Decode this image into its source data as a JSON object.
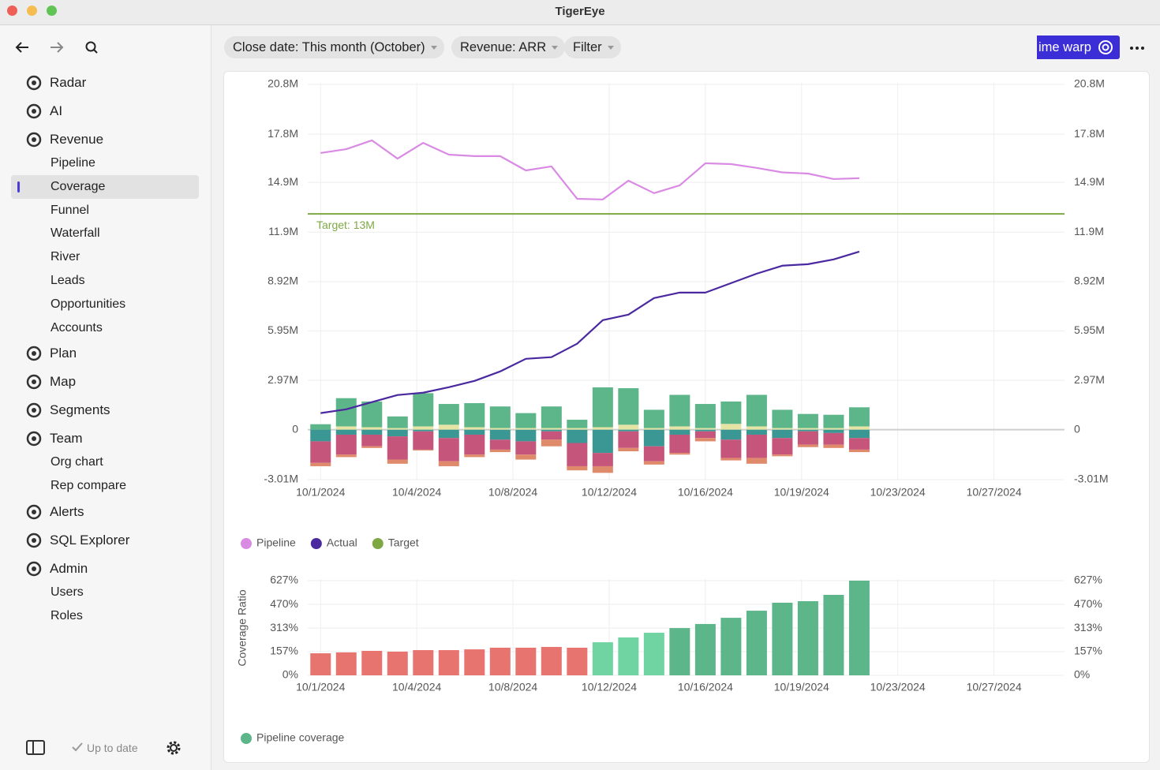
{
  "window_title": "TigerEye",
  "sidebar": {
    "nav": [
      {
        "label": "Radar"
      },
      {
        "label": "AI"
      },
      {
        "label": "Revenue",
        "children": [
          {
            "label": "Pipeline"
          },
          {
            "label": "Coverage",
            "selected": true
          },
          {
            "label": "Funnel"
          },
          {
            "label": "Waterfall"
          },
          {
            "label": "River"
          },
          {
            "label": "Leads"
          },
          {
            "label": "Opportunities"
          },
          {
            "label": "Accounts"
          }
        ]
      },
      {
        "label": "Plan"
      },
      {
        "label": "Map"
      },
      {
        "label": "Segments"
      },
      {
        "label": "Team",
        "children": [
          {
            "label": "Org chart"
          },
          {
            "label": "Rep compare"
          }
        ]
      },
      {
        "label": "Alerts"
      },
      {
        "label": "SQL Explorer"
      },
      {
        "label": "Admin",
        "children": [
          {
            "label": "Users"
          },
          {
            "label": "Roles"
          }
        ]
      }
    ],
    "status": "Up to date"
  },
  "toolbar": {
    "filters": [
      "Close date: This month (October)",
      "Revenue: ARR",
      "Filter"
    ],
    "button": "ime warp"
  },
  "chart_data": [
    {
      "type": "combo",
      "x": [
        1,
        2,
        3,
        4,
        5,
        6,
        7,
        8,
        9,
        10,
        11,
        12,
        13,
        14,
        15,
        16,
        17,
        18,
        19,
        20,
        21,
        22
      ],
      "xlim": [
        0.5,
        30
      ],
      "xticks": [
        {
          "value": 1,
          "label": "10/1/2024"
        },
        {
          "value": 4.75,
          "label": "10/4/2024"
        },
        {
          "value": 8.5,
          "label": "10/8/2024"
        },
        {
          "value": 12.25,
          "label": "10/12/2024"
        },
        {
          "value": 16,
          "label": "10/16/2024"
        },
        {
          "value": 19.75,
          "label": "10/19/2024"
        },
        {
          "value": 23.5,
          "label": "10/23/2024"
        },
        {
          "value": 27.25,
          "label": "10/27/2024"
        }
      ],
      "ylim": [
        -3.01,
        20.8
      ],
      "yticks": [
        {
          "value": 20.8,
          "label": "20.8M"
        },
        {
          "value": 17.8,
          "label": "17.8M"
        },
        {
          "value": 14.9,
          "label": "14.9M"
        },
        {
          "value": 11.9,
          "label": "11.9M"
        },
        {
          "value": 8.92,
          "label": "8.92M"
        },
        {
          "value": 5.95,
          "label": "5.95M"
        },
        {
          "value": 2.97,
          "label": "2.97M"
        },
        0,
        {
          "value": -3.01,
          "label": "-3.01M"
        }
      ],
      "y2lim": [
        -3.01,
        20.8
      ],
      "y2ticks": [
        {
          "value": 20.8,
          "label": "20.8M"
        },
        {
          "value": 17.8,
          "label": "17.8M"
        },
        {
          "value": 14.9,
          "label": "14.9M"
        },
        {
          "value": 11.9,
          "label": "11.9M"
        },
        {
          "value": 8.92,
          "label": "8.92M"
        },
        {
          "value": 5.95,
          "label": "5.95M"
        },
        {
          "value": 2.97,
          "label": "2.97M"
        },
        0,
        {
          "value": -3.01,
          "label": "-3.01M"
        }
      ],
      "grid": true,
      "series": [
        {
          "kind": "bar",
          "color": "#e6e4a4",
          "values": [
            0,
            0.2,
            0.15,
            0.1,
            0.2,
            0.3,
            0.15,
            0.1,
            0.1,
            0.1,
            0.1,
            0.15,
            0.3,
            0.1,
            0.2,
            0.1,
            0.35,
            0.2,
            0.1,
            0.1,
            0.1,
            0.2
          ]
        },
        {
          "kind": "bar",
          "color": "#5db58a",
          "values": [
            0.33,
            1.7,
            1.55,
            0.7,
            2.0,
            1.25,
            1.45,
            1.3,
            0.9,
            1.3,
            0.5,
            2.4,
            2.2,
            1.1,
            1.9,
            1.45,
            1.35,
            1.9,
            1.1,
            0.85,
            0.8,
            1.15
          ]
        },
        {
          "kind": "bar",
          "color": "#3b9794",
          "values": [
            -0.7,
            -0.3,
            -0.3,
            -0.4,
            -0.1,
            -0.5,
            -0.3,
            -0.6,
            -0.7,
            -0.1,
            -0.8,
            -1.4,
            -0.1,
            -1.0,
            -0.3,
            -0.1,
            -0.6,
            -0.3,
            -0.5,
            -0.1,
            -0.2,
            -0.5
          ]
        },
        {
          "kind": "bar",
          "color": "#c6557c",
          "values": [
            -1.3,
            -1.2,
            -0.7,
            -1.4,
            -1.1,
            -1.4,
            -1.2,
            -0.6,
            -0.8,
            -0.5,
            -1.4,
            -0.8,
            -1.0,
            -0.9,
            -1.1,
            -0.4,
            -1.1,
            -1.4,
            -1.0,
            -0.8,
            -0.7,
            -0.7
          ]
        },
        {
          "kind": "bar",
          "color": "#e08a6c",
          "values": [
            -0.2,
            -0.15,
            -0.1,
            -0.25,
            -0.05,
            -0.3,
            -0.15,
            -0.15,
            -0.3,
            -0.4,
            -0.25,
            -0.4,
            -0.2,
            -0.2,
            -0.1,
            -0.2,
            -0.15,
            -0.35,
            -0.1,
            -0.15,
            -0.2,
            -0.15
          ]
        },
        {
          "kind": "line",
          "name": "Pipeline",
          "color": "#d98be3",
          "values": [
            16.67,
            16.9,
            17.43,
            16.33,
            17.28,
            16.57,
            16.48,
            16.48,
            15.62,
            15.86,
            13.91,
            13.87,
            15.0,
            14.25,
            14.72,
            16.05,
            16.0,
            15.77,
            15.5,
            15.43,
            15.1,
            15.15
          ]
        },
        {
          "kind": "line",
          "name": "Actual",
          "color": "#4a28a0",
          "values": [
            1.0,
            1.23,
            1.66,
            2.09,
            2.23,
            2.56,
            2.94,
            3.51,
            4.27,
            4.37,
            5.18,
            6.6,
            6.93,
            7.93,
            8.26,
            8.26,
            8.83,
            9.4,
            9.88,
            9.97,
            10.26,
            10.73
          ]
        },
        {
          "kind": "hline",
          "name": "Target",
          "color": "#7ea843",
          "value": 13,
          "label": "Target: 13M"
        }
      ]
    },
    {
      "type": "bar",
      "ylabel": "Coverage Ratio",
      "x": [
        1,
        2,
        3,
        4,
        5,
        6,
        7,
        8,
        9,
        10,
        11,
        12,
        13,
        14,
        15,
        16,
        17,
        18,
        19,
        20,
        21,
        22
      ],
      "xlim": [
        0.5,
        30
      ],
      "xticks": [
        {
          "value": 1,
          "label": "10/1/2024"
        },
        {
          "value": 4.75,
          "label": "10/4/2024"
        },
        {
          "value": 8.5,
          "label": "10/8/2024"
        },
        {
          "value": 12.25,
          "label": "10/12/2024"
        },
        {
          "value": 16,
          "label": "10/16/2024"
        },
        {
          "value": 19.75,
          "label": "10/19/2024"
        },
        {
          "value": 23.5,
          "label": "10/23/2024"
        },
        {
          "value": 27.25,
          "label": "10/27/2024"
        }
      ],
      "ylim": [
        0,
        627
      ],
      "yticks": [
        {
          "value": 627,
          "label": "627%"
        },
        {
          "value": 470,
          "label": "470%"
        },
        {
          "value": 313,
          "label": "313%"
        },
        {
          "value": 157,
          "label": "157%"
        },
        {
          "value": 0,
          "label": "0%"
        }
      ],
      "y2lim": [
        0,
        627
      ],
      "y2ticks": [
        {
          "value": 627,
          "label": "627%"
        },
        {
          "value": 470,
          "label": "470%"
        },
        {
          "value": 313,
          "label": "313%"
        },
        {
          "value": 157,
          "label": "157%"
        },
        {
          "value": 0,
          "label": "0%"
        }
      ],
      "grid": true,
      "series": [
        {
          "name": "Pipeline coverage",
          "color": "#5db58a",
          "colors": [
            "#e8746f",
            "#e8746f",
            "#e8746f",
            "#e8746f",
            "#e8746f",
            "#e8746f",
            "#e8746f",
            "#e8746f",
            "#e8746f",
            "#e8746f",
            "#e8746f",
            "#6fd4a2",
            "#6fd4a2",
            "#6fd4a2",
            "#5db58a",
            "#5db58a",
            "#5db58a",
            "#5db58a",
            "#5db58a",
            "#5db58a",
            "#5db58a",
            "#5db58a"
          ],
          "values": [
            146,
            152,
            162,
            157,
            167,
            167,
            172,
            183,
            183,
            188,
            183,
            219,
            251,
            282,
            313,
            340,
            381,
            428,
            481,
            491,
            533,
            627
          ]
        }
      ]
    }
  ]
}
